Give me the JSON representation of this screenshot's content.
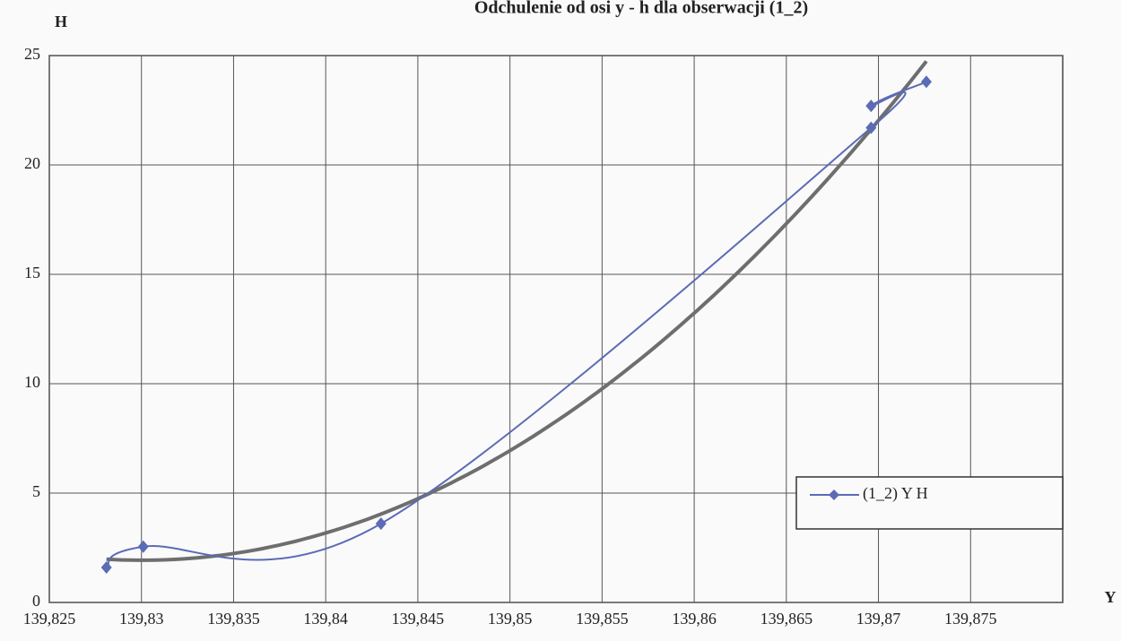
{
  "chart_data": {
    "type": "scatter",
    "title": "Odchulenie od osi y - h dla obserwacji (1_2)",
    "y_label": "H",
    "x_label": "Y",
    "series": [
      {
        "name": "(1_2) Y H",
        "color": "#5b6bb5",
        "x": [
          139.8281,
          139.8301,
          139.843,
          139.8696,
          139.8696,
          139.8726
        ],
        "values": [
          1.6,
          2.55,
          3.6,
          21.7,
          22.7,
          23.8
        ]
      }
    ],
    "trendline": {
      "kind": "polynomial",
      "order": 2,
      "color": "#6e6e6e"
    },
    "smooth": true,
    "xlim": [
      139.825,
      139.88
    ],
    "xticks": [
      {
        "value": 139.825,
        "label": "139,825"
      },
      {
        "value": 139.83,
        "label": "139,83"
      },
      {
        "value": 139.835,
        "label": "139,835"
      },
      {
        "value": 139.84,
        "label": "139,84"
      },
      {
        "value": 139.845,
        "label": "139,845"
      },
      {
        "value": 139.85,
        "label": "139,85"
      },
      {
        "value": 139.855,
        "label": "139,855"
      },
      {
        "value": 139.86,
        "label": "139,86"
      },
      {
        "value": 139.865,
        "label": "139,865"
      },
      {
        "value": 139.87,
        "label": "139,87"
      },
      {
        "value": 139.875,
        "label": "139,875"
      }
    ],
    "ylim": [
      0,
      25
    ],
    "yticks": [
      0,
      5,
      10,
      15,
      20,
      25
    ],
    "grid": true,
    "legend": "right"
  }
}
